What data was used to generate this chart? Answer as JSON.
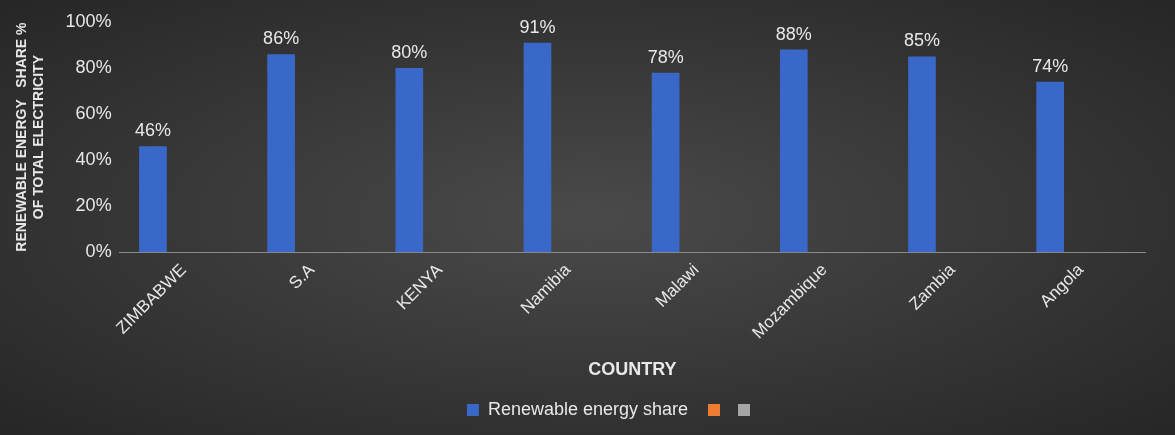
{
  "chart_data": {
    "type": "bar",
    "xlabel": "COUNTRY",
    "ylabel": "RENEWABLE ENERGY   SHARE %\nOF TOTAL ELECTRICITY",
    "categories": [
      "ZIMBABWE",
      "S.A",
      "KENYA",
      "Namibia",
      "Malawi",
      "Mozambique",
      "Zambia",
      "Angola"
    ],
    "series": [
      {
        "name": "Renewable energy share",
        "color": "#3a68c8",
        "values": [
          46,
          86,
          80,
          91,
          78,
          88,
          85,
          74
        ]
      }
    ],
    "ylim": [
      0,
      100
    ],
    "yticks": [
      {
        "value": 0,
        "label": "0%"
      },
      {
        "value": 20,
        "label": "20%"
      },
      {
        "value": 40,
        "label": "40%"
      },
      {
        "value": 60,
        "label": "60%"
      },
      {
        "value": 80,
        "label": "80%"
      },
      {
        "value": 100,
        "label": "100%"
      }
    ],
    "value_labels": [
      "46%",
      "86%",
      "80%",
      "91%",
      "78%",
      "88%",
      "85%",
      "74%"
    ],
    "grid": false,
    "legend": "bottom"
  }
}
